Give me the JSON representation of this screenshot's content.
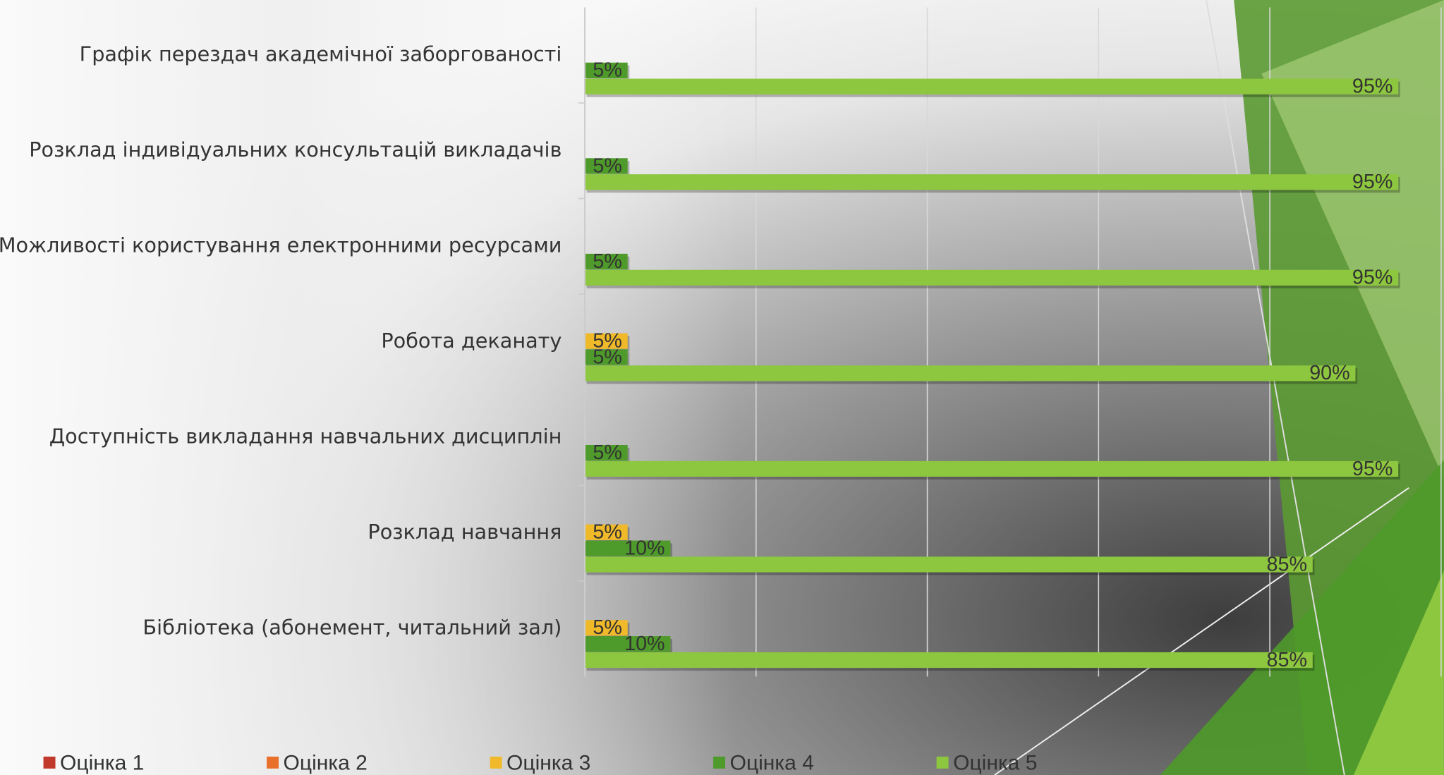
{
  "chart_data": {
    "type": "hbar",
    "categories": [
      "Графік перездач академічної заборгованості",
      "Розклад індивідуальних консультацій викладачів",
      "Можливості користування електронними ресурсами",
      "Робота деканату",
      "Доступність викладання навчальних дисциплін",
      "Розклад навчання",
      "Бібліотека (абонемент, читальний зал)"
    ],
    "series": [
      {
        "name": "Оцінка 1",
        "color": "#c0392b",
        "values": [
          null,
          null,
          null,
          null,
          null,
          null,
          null
        ],
        "value_labels": [
          null,
          null,
          null,
          null,
          null,
          null,
          null
        ]
      },
      {
        "name": "Оцінка 2",
        "color": "#e8702a",
        "values": [
          null,
          null,
          null,
          null,
          null,
          null,
          null
        ],
        "value_labels": [
          null,
          null,
          null,
          null,
          null,
          null,
          null
        ]
      },
      {
        "name": "Оцінка 3",
        "color": "#f0b92a",
        "values": [
          null,
          null,
          null,
          5,
          null,
          5,
          5
        ],
        "value_labels": [
          null,
          null,
          null,
          "5%",
          null,
          "5%",
          "5%"
        ]
      },
      {
        "name": "Оцінка 4",
        "color": "#4e9a2a",
        "values": [
          5,
          5,
          5,
          5,
          5,
          10,
          10
        ],
        "value_labels": [
          "5%",
          "5%",
          "5%",
          "5%",
          "5%",
          "10%",
          "10%"
        ]
      },
      {
        "name": "Оцінка 5",
        "color": "#8dc63f",
        "values": [
          95,
          95,
          95,
          90,
          95,
          85,
          85
        ],
        "value_labels": [
          "95%",
          "95%",
          "95%",
          "90%",
          "95%",
          "85%",
          "85%"
        ]
      }
    ],
    "xlim": [
      0,
      100
    ],
    "xticks": [
      0,
      20,
      40,
      60,
      80,
      100
    ],
    "grid": true
  }
}
